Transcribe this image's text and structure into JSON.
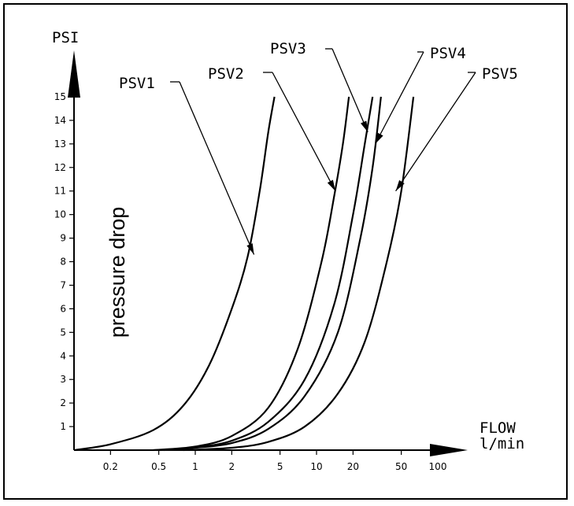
{
  "chart_data": {
    "type": "line",
    "title": "",
    "ylabel": "pressure drop",
    "yunit": "PSI",
    "xunit_line1": "FLOW",
    "xunit_line2": "l/min",
    "x_scale": "log",
    "xlim": [
      0.1,
      100
    ],
    "ylim": [
      0,
      15
    ],
    "x_ticks": [
      {
        "value": 0.2,
        "label": "0.2"
      },
      {
        "value": 0.5,
        "label": "0.5"
      },
      {
        "value": 1,
        "label": "1"
      },
      {
        "value": 2,
        "label": "2"
      },
      {
        "value": 5,
        "label": "5"
      },
      {
        "value": 10,
        "label": "10"
      },
      {
        "value": 20,
        "label": "20"
      },
      {
        "value": 50,
        "label": "50"
      },
      {
        "value": 100,
        "label": "100"
      }
    ],
    "y_ticks": [
      {
        "value": 1,
        "label": "1"
      },
      {
        "value": 2,
        "label": "2"
      },
      {
        "value": 3,
        "label": "3"
      },
      {
        "value": 4,
        "label": "4"
      },
      {
        "value": 5,
        "label": "5"
      },
      {
        "value": 6,
        "label": "6"
      },
      {
        "value": 7,
        "label": "7"
      },
      {
        "value": 8,
        "label": "8"
      },
      {
        "value": 9,
        "label": "9"
      },
      {
        "value": 10,
        "label": "10"
      },
      {
        "value": 11,
        "label": "11"
      },
      {
        "value": 12,
        "label": "12"
      },
      {
        "value": 13,
        "label": "13"
      },
      {
        "value": 14,
        "label": "14"
      },
      {
        "value": 15,
        "label": "15"
      }
    ],
    "grid": false,
    "legend": "callout labels with leader lines",
    "series": [
      {
        "name": "PSV1",
        "points": [
          [
            0.1,
            0
          ],
          [
            0.2,
            0.25
          ],
          [
            0.45,
            0.85
          ],
          [
            0.8,
            1.9
          ],
          [
            1.3,
            3.6
          ],
          [
            2.0,
            6.0
          ],
          [
            2.7,
            8.2
          ],
          [
            3.4,
            11.0
          ],
          [
            4.0,
            13.5
          ],
          [
            4.5,
            15
          ]
        ],
        "callout": {
          "at": [
            3.05,
            8.3
          ],
          "label": "PSV1"
        }
      },
      {
        "name": "PSV2",
        "points": [
          [
            0.45,
            0
          ],
          [
            1.0,
            0.15
          ],
          [
            2.0,
            0.6
          ],
          [
            4.0,
            1.8
          ],
          [
            7.0,
            4.3
          ],
          [
            11,
            8.0
          ],
          [
            14,
            10.8
          ],
          [
            16.5,
            13.0
          ],
          [
            18.5,
            15
          ]
        ],
        "callout": {
          "at": [
            14.3,
            11.0
          ],
          "label": "PSV2"
        }
      },
      {
        "name": "PSV3",
        "points": [
          [
            0.5,
            0
          ],
          [
            1.0,
            0.12
          ],
          [
            2.0,
            0.4
          ],
          [
            4.0,
            1.2
          ],
          [
            8.0,
            3.0
          ],
          [
            14,
            6.2
          ],
          [
            20,
            10.0
          ],
          [
            25,
            13.0
          ],
          [
            29,
            15
          ]
        ],
        "callout": {
          "at": [
            26.5,
            13.5
          ],
          "label": "PSV3"
        }
      },
      {
        "name": "PSV4",
        "points": [
          [
            0.55,
            0
          ],
          [
            1.0,
            0.1
          ],
          [
            2.0,
            0.3
          ],
          [
            4.0,
            0.9
          ],
          [
            8.0,
            2.3
          ],
          [
            15,
            5.0
          ],
          [
            23,
            9.0
          ],
          [
            29,
            12.0
          ],
          [
            34,
            15
          ]
        ],
        "callout": {
          "at": [
            30.5,
            13.0
          ],
          "label": "PSV4"
        }
      },
      {
        "name": "PSV5",
        "points": [
          [
            0.8,
            0
          ],
          [
            2.0,
            0.1
          ],
          [
            4.0,
            0.35
          ],
          [
            8.0,
            1.0
          ],
          [
            15,
            2.4
          ],
          [
            25,
            4.6
          ],
          [
            38,
            8.0
          ],
          [
            50,
            11.0
          ],
          [
            63,
            15
          ]
        ],
        "callout": {
          "at": [
            45,
            11.0
          ],
          "label": "PSV5"
        }
      }
    ]
  }
}
